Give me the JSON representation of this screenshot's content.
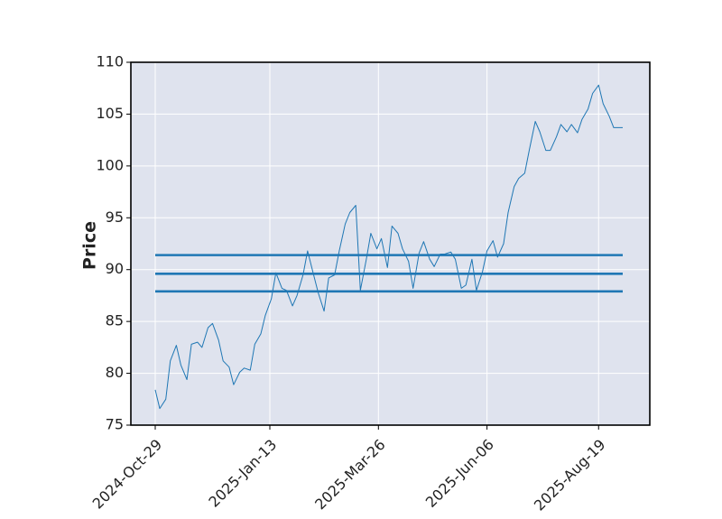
{
  "chart_data": {
    "type": "line",
    "title": "",
    "xlabel": "",
    "ylabel": "Price",
    "ylim": [
      75,
      110
    ],
    "yticks": [
      75,
      80,
      85,
      90,
      95,
      100,
      105,
      110
    ],
    "xticks": [
      "2024-Oct-29",
      "2025-Jan-13",
      "2025-Mar-26",
      "2025-Jun-06",
      "2025-Aug-19"
    ],
    "xrange": [
      "2024-10-29",
      "2025-09-04"
    ],
    "grid": true,
    "colors": {
      "background": "#dfe3ee",
      "grid": "#ffffff",
      "line": "#1f77b4",
      "frame": "#000000"
    },
    "series": [
      {
        "type": "line",
        "x": [
          "2024-10-29",
          "2024-11-01",
          "2024-11-05",
          "2024-11-08",
          "2024-11-12",
          "2024-11-15",
          "2024-11-19",
          "2024-11-22",
          "2024-11-26",
          "2024-11-29",
          "2024-12-03",
          "2024-12-06",
          "2024-12-10",
          "2024-12-13",
          "2024-12-17",
          "2024-12-20",
          "2024-12-24",
          "2024-12-27",
          "2024-12-31",
          "2025-01-03",
          "2025-01-07",
          "2025-01-10",
          "2025-01-14",
          "2025-01-17",
          "2025-01-21",
          "2025-01-24",
          "2025-01-28",
          "2025-01-31",
          "2025-02-04",
          "2025-02-07",
          "2025-02-11",
          "2025-02-14",
          "2025-02-18",
          "2025-02-21",
          "2025-02-25",
          "2025-02-28",
          "2025-03-04",
          "2025-03-07",
          "2025-03-11",
          "2025-03-14",
          "2025-03-18",
          "2025-03-21",
          "2025-03-25",
          "2025-03-28",
          "2025-04-01",
          "2025-04-04",
          "2025-04-08",
          "2025-04-11",
          "2025-04-15",
          "2025-04-18",
          "2025-04-22",
          "2025-04-25",
          "2025-04-29",
          "2025-05-02",
          "2025-05-06",
          "2025-05-09",
          "2025-05-13",
          "2025-05-16",
          "2025-05-20",
          "2025-05-23",
          "2025-05-27",
          "2025-05-30",
          "2025-06-03",
          "2025-06-06",
          "2025-06-10",
          "2025-06-13",
          "2025-06-17",
          "2025-06-20",
          "2025-06-24",
          "2025-06-27",
          "2025-07-01",
          "2025-07-04",
          "2025-07-08",
          "2025-07-11",
          "2025-07-15",
          "2025-07-18",
          "2025-07-22",
          "2025-07-25",
          "2025-07-29",
          "2025-08-01",
          "2025-08-05",
          "2025-08-08",
          "2025-08-12",
          "2025-08-15",
          "2025-08-19",
          "2025-08-22",
          "2025-08-26",
          "2025-08-29",
          "2025-09-02",
          "2025-09-04"
        ],
        "y": [
          78.4,
          76.6,
          77.5,
          81.2,
          82.7,
          80.8,
          79.4,
          82.8,
          83.0,
          82.5,
          84.4,
          84.8,
          83.2,
          81.2,
          80.6,
          78.9,
          80.1,
          80.5,
          80.3,
          82.8,
          83.8,
          85.6,
          87.2,
          89.7,
          88.2,
          88.0,
          86.5,
          87.5,
          89.5,
          91.8,
          89.5,
          87.8,
          86.0,
          89.2,
          89.5,
          91.8,
          94.4,
          95.5,
          96.2,
          88.0,
          91.0,
          93.5,
          92.0,
          93.0,
          90.2,
          94.2,
          93.5,
          92.0,
          90.8,
          88.2,
          91.6,
          92.7,
          91.0,
          90.3,
          91.5,
          91.5,
          91.7,
          91.0,
          88.2,
          88.5,
          91.0,
          88.0,
          89.8,
          91.8,
          92.8,
          91.2,
          92.5,
          95.5,
          98.0,
          98.8,
          99.3,
          101.5,
          104.3,
          103.3,
          101.5,
          101.5,
          102.8,
          104.0,
          103.3,
          104.0,
          103.2,
          104.5,
          105.5,
          107.0,
          107.8,
          106.0,
          104.8,
          103.7,
          103.7,
          103.7
        ]
      },
      {
        "type": "hline",
        "y": 91.4,
        "x": [
          "2024-10-29",
          "2025-09-04"
        ]
      },
      {
        "type": "hline",
        "y": 89.6,
        "x": [
          "2024-10-29",
          "2025-09-04"
        ]
      },
      {
        "type": "hline",
        "y": 87.9,
        "x": [
          "2024-10-29",
          "2025-09-04"
        ]
      }
    ]
  }
}
